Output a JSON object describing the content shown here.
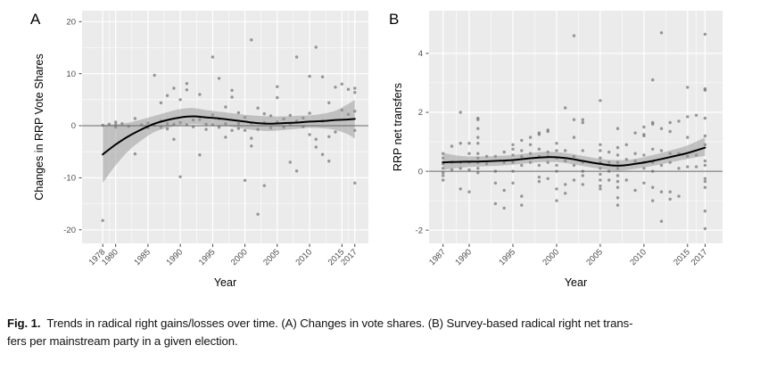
{
  "figure": {
    "caption": {
      "label": "Fig. 1.",
      "line1": "Trends in radical right gains/losses over time. (A) Changes in vote shares. (B) Survey-based radical right net trans-",
      "line2": "fers per mainstream party in a given election."
    }
  },
  "colors": {
    "panel_bg": "#ebebeb",
    "grid": "#ffffff",
    "point": "#737373",
    "smooth_line": "#000000",
    "ribbon": "#969696",
    "zero_line": "#636363",
    "tick_text": "#4d4d4d",
    "title_text": "#000000"
  },
  "chart_data": [
    {
      "type": "scatter",
      "panel_label": "A",
      "xlabel": "Year",
      "ylabel": "Changes in RRP Vote Shares",
      "xlim": [
        1974.8,
        2019.1
      ],
      "ylim": [
        -22.6,
        22.1
      ],
      "xticks": [
        1978,
        1980,
        1985,
        1990,
        1995,
        2000,
        2005,
        2010,
        2015,
        2017
      ],
      "yticks": [
        -20,
        -10,
        0,
        10,
        20
      ],
      "grid": true,
      "legend": "none",
      "zero_line": 0,
      "smooth": {
        "x": [
          1978,
          1980,
          1982,
          1984,
          1986,
          1988,
          1990,
          1992,
          1994,
          1996,
          1998,
          2000,
          2002,
          2004,
          2006,
          2008,
          2010,
          2012,
          2014,
          2016,
          2017
        ],
        "fit": [
          -5.5,
          -3.6,
          -2.0,
          -0.7,
          0.4,
          1.1,
          1.6,
          1.8,
          1.6,
          1.4,
          1.1,
          0.8,
          0.5,
          0.4,
          0.5,
          0.6,
          0.8,
          0.9,
          1.1,
          1.2,
          1.3
        ],
        "low": [
          -11.0,
          -7.6,
          -4.8,
          -2.8,
          -1.2,
          -0.4,
          0.1,
          0.3,
          0.2,
          0.1,
          -0.2,
          -0.6,
          -0.9,
          -1.0,
          -0.8,
          -0.6,
          -0.4,
          -0.5,
          -0.8,
          -1.7,
          -2.5
        ],
        "high": [
          0.2,
          0.3,
          0.6,
          1.2,
          1.9,
          2.6,
          3.2,
          3.4,
          3.0,
          2.7,
          2.4,
          2.1,
          1.9,
          1.8,
          1.8,
          1.9,
          2.0,
          2.3,
          2.9,
          4.2,
          5.0
        ]
      },
      "points": [
        [
          1978,
          -18.2
        ],
        [
          1978,
          0.1
        ],
        [
          1979,
          0.3
        ],
        [
          1980,
          0.2
        ],
        [
          1980,
          -0.3
        ],
        [
          1980,
          0.7
        ],
        [
          1981,
          0.4
        ],
        [
          1982,
          -0.1
        ],
        [
          1983,
          -5.4
        ],
        [
          1983,
          1.4
        ],
        [
          1984,
          0.2
        ],
        [
          1985,
          -0.4
        ],
        [
          1985,
          0.5
        ],
        [
          1986,
          9.7
        ],
        [
          1986,
          0.1
        ],
        [
          1987,
          4.4
        ],
        [
          1987,
          0.9
        ],
        [
          1987,
          -0.3
        ],
        [
          1988,
          5.8
        ],
        [
          1988,
          0.4
        ],
        [
          1988,
          -0.6
        ],
        [
          1989,
          7.2
        ],
        [
          1989,
          -2.6
        ],
        [
          1989,
          0.3
        ],
        [
          1990,
          5.0
        ],
        [
          1990,
          -9.8
        ],
        [
          1990,
          0.6
        ],
        [
          1991,
          8.1
        ],
        [
          1991,
          6.9
        ],
        [
          1991,
          0.2
        ],
        [
          1992,
          1.1
        ],
        [
          1992,
          -0.2
        ],
        [
          1993,
          6.0
        ],
        [
          1993,
          -5.6
        ],
        [
          1993,
          1.2
        ],
        [
          1994,
          0.3
        ],
        [
          1994,
          -0.7
        ],
        [
          1995,
          13.2
        ],
        [
          1995,
          2.1
        ],
        [
          1995,
          0.2
        ],
        [
          1996,
          9.1
        ],
        [
          1996,
          1.3
        ],
        [
          1996,
          -0.3
        ],
        [
          1997,
          3.6
        ],
        [
          1997,
          -2.2
        ],
        [
          1997,
          0.4
        ],
        [
          1998,
          6.8
        ],
        [
          1998,
          5.5
        ],
        [
          1998,
          -0.9
        ],
        [
          1999,
          2.5
        ],
        [
          1999,
          0.4
        ],
        [
          1999,
          -0.5
        ],
        [
          2000,
          -10.5
        ],
        [
          2000,
          1.6
        ],
        [
          2000,
          -0.9
        ],
        [
          2001,
          16.5
        ],
        [
          2001,
          -2.4
        ],
        [
          2001,
          -3.9
        ],
        [
          2001,
          0.5
        ],
        [
          2002,
          -17.0
        ],
        [
          2002,
          3.4
        ],
        [
          2002,
          -0.7
        ],
        [
          2003,
          -11.5
        ],
        [
          2003,
          2.3
        ],
        [
          2003,
          0.6
        ],
        [
          2004,
          1.9
        ],
        [
          2004,
          -0.4
        ],
        [
          2005,
          7.5
        ],
        [
          2005,
          5.4
        ],
        [
          2005,
          0.7
        ],
        [
          2006,
          1.3
        ],
        [
          2006,
          -0.3
        ],
        [
          2007,
          -7.0
        ],
        [
          2007,
          2.0
        ],
        [
          2007,
          0.2
        ],
        [
          2008,
          13.2
        ],
        [
          2008,
          -8.7
        ],
        [
          2008,
          0.9
        ],
        [
          2009,
          1.5
        ],
        [
          2009,
          -0.2
        ],
        [
          2010,
          9.5
        ],
        [
          2010,
          -1.7
        ],
        [
          2010,
          2.4
        ],
        [
          2011,
          15.1
        ],
        [
          2011,
          -2.6
        ],
        [
          2011,
          -4.1
        ],
        [
          2012,
          9.4
        ],
        [
          2012,
          -5.5
        ],
        [
          2012,
          0.9
        ],
        [
          2013,
          4.4
        ],
        [
          2013,
          -2.1
        ],
        [
          2013,
          -6.8
        ],
        [
          2014,
          7.4
        ],
        [
          2014,
          -1.2
        ],
        [
          2015,
          8.0
        ],
        [
          2015,
          3.0
        ],
        [
          2016,
          7.0
        ],
        [
          2016,
          2.2
        ],
        [
          2017,
          7.2
        ],
        [
          2017,
          6.4
        ],
        [
          2017,
          -11.0
        ],
        [
          2017,
          2.8
        ],
        [
          2017,
          -0.9
        ]
      ]
    },
    {
      "type": "scatter",
      "panel_label": "B",
      "xlabel": "Year",
      "ylabel": "RRP net transfers",
      "xlim": [
        1985.4,
        2019.0
      ],
      "ylim": [
        -2.45,
        5.45
      ],
      "xticks": [
        1987,
        1990,
        1995,
        2000,
        2005,
        2010,
        2015,
        2017
      ],
      "yticks": [
        -2,
        0,
        2,
        4
      ],
      "grid": true,
      "legend": "none",
      "zero_line": 0,
      "smooth": {
        "x": [
          1987,
          1989,
          1991,
          1993,
          1995,
          1997,
          1999,
          2001,
          2003,
          2005,
          2007,
          2009,
          2011,
          2013,
          2015,
          2017
        ],
        "fit": [
          0.3,
          0.32,
          0.33,
          0.35,
          0.38,
          0.44,
          0.48,
          0.45,
          0.35,
          0.25,
          0.19,
          0.25,
          0.35,
          0.48,
          0.62,
          0.8
        ],
        "low": [
          0.05,
          0.12,
          0.16,
          0.18,
          0.22,
          0.28,
          0.32,
          0.28,
          0.18,
          0.08,
          0.02,
          0.08,
          0.18,
          0.3,
          0.42,
          0.52
        ],
        "high": [
          0.62,
          0.52,
          0.5,
          0.52,
          0.55,
          0.62,
          0.66,
          0.62,
          0.52,
          0.42,
          0.38,
          0.42,
          0.55,
          0.7,
          0.88,
          1.15
        ]
      },
      "points": [
        [
          1987,
          0.6
        ],
        [
          1987,
          0.45
        ],
        [
          1987,
          0.3
        ],
        [
          1987,
          0.25
        ],
        [
          1987,
          0.1
        ],
        [
          1987,
          -0.05
        ],
        [
          1987,
          -0.15
        ],
        [
          1987,
          -0.3
        ],
        [
          1988,
          0.85
        ],
        [
          1988,
          0.3
        ],
        [
          1988,
          0.05
        ],
        [
          1989,
          2.0
        ],
        [
          1989,
          0.95
        ],
        [
          1989,
          0.3
        ],
        [
          1989,
          0.1
        ],
        [
          1989,
          -0.6
        ],
        [
          1990,
          0.95
        ],
        [
          1990,
          0.6
        ],
        [
          1990,
          0.3
        ],
        [
          1990,
          0.05
        ],
        [
          1990,
          -0.7
        ],
        [
          1991,
          1.8
        ],
        [
          1991,
          1.75
        ],
        [
          1991,
          1.45
        ],
        [
          1991,
          1.15
        ],
        [
          1991,
          0.95
        ],
        [
          1991,
          0.6
        ],
        [
          1991,
          0.45
        ],
        [
          1991,
          0.3
        ],
        [
          1991,
          0.1
        ],
        [
          1991,
          -0.05
        ],
        [
          1992,
          0.5
        ],
        [
          1992,
          0.25
        ],
        [
          1993,
          0.5
        ],
        [
          1993,
          0.0
        ],
        [
          1993,
          -0.4
        ],
        [
          1993,
          -1.1
        ],
        [
          1994,
          0.65
        ],
        [
          1994,
          0.3
        ],
        [
          1994,
          -0.65
        ],
        [
          1994,
          -1.25
        ],
        [
          1995,
          0.9
        ],
        [
          1995,
          0.75
        ],
        [
          1995,
          0.55
        ],
        [
          1995,
          0.3
        ],
        [
          1995,
          0.0
        ],
        [
          1995,
          -0.4
        ],
        [
          1996,
          1.05
        ],
        [
          1996,
          0.7
        ],
        [
          1996,
          0.5
        ],
        [
          1996,
          0.2
        ],
        [
          1996,
          -0.85
        ],
        [
          1996,
          -1.15
        ],
        [
          1997,
          1.15
        ],
        [
          1997,
          0.9
        ],
        [
          1997,
          0.6
        ],
        [
          1997,
          0.3
        ],
        [
          1998,
          1.3
        ],
        [
          1998,
          1.25
        ],
        [
          1998,
          0.75
        ],
        [
          1998,
          0.5
        ],
        [
          1998,
          0.2
        ],
        [
          1998,
          -0.2
        ],
        [
          1998,
          -0.35
        ],
        [
          1999,
          1.4
        ],
        [
          1999,
          1.35
        ],
        [
          1999,
          0.65
        ],
        [
          1999,
          0.5
        ],
        [
          1999,
          0.3
        ],
        [
          1999,
          -0.25
        ],
        [
          2000,
          0.95
        ],
        [
          2000,
          0.7
        ],
        [
          2000,
          0.45
        ],
        [
          2000,
          0.2
        ],
        [
          2000,
          0.0
        ],
        [
          2000,
          -0.6
        ],
        [
          2000,
          -1.0
        ],
        [
          2001,
          2.15
        ],
        [
          2001,
          0.7
        ],
        [
          2001,
          0.35
        ],
        [
          2001,
          -0.45
        ],
        [
          2001,
          -0.75
        ],
        [
          2002,
          4.6
        ],
        [
          2002,
          1.75
        ],
        [
          2002,
          1.15
        ],
        [
          2002,
          0.5
        ],
        [
          2002,
          0.2
        ],
        [
          2002,
          -0.3
        ],
        [
          2003,
          1.75
        ],
        [
          2003,
          1.65
        ],
        [
          2003,
          0.7
        ],
        [
          2003,
          0.3
        ],
        [
          2003,
          0.0
        ],
        [
          2003,
          -0.15
        ],
        [
          2003,
          -0.45
        ],
        [
          2005,
          2.4
        ],
        [
          2005,
          0.9
        ],
        [
          2005,
          0.7
        ],
        [
          2005,
          0.45
        ],
        [
          2005,
          0.3
        ],
        [
          2005,
          0.1
        ],
        [
          2005,
          -0.1
        ],
        [
          2005,
          -0.3
        ],
        [
          2005,
          -0.5
        ],
        [
          2005,
          -0.6
        ],
        [
          2006,
          0.65
        ],
        [
          2006,
          0.3
        ],
        [
          2006,
          0.0
        ],
        [
          2006,
          -0.3
        ],
        [
          2007,
          1.45
        ],
        [
          2007,
          0.8
        ],
        [
          2007,
          0.55
        ],
        [
          2007,
          0.3
        ],
        [
          2007,
          0.1
        ],
        [
          2007,
          -0.15
        ],
        [
          2007,
          -0.35
        ],
        [
          2007,
          -0.55
        ],
        [
          2007,
          -0.9
        ],
        [
          2007,
          -1.15
        ],
        [
          2008,
          0.9
        ],
        [
          2008,
          0.4
        ],
        [
          2008,
          -0.3
        ],
        [
          2009,
          1.3
        ],
        [
          2009,
          0.6
        ],
        [
          2009,
          0.35
        ],
        [
          2009,
          -0.65
        ],
        [
          2010,
          1.5
        ],
        [
          2010,
          1.25
        ],
        [
          2010,
          1.2
        ],
        [
          2010,
          0.55
        ],
        [
          2010,
          0.3
        ],
        [
          2010,
          0.1
        ],
        [
          2010,
          -0.4
        ],
        [
          2011,
          3.1
        ],
        [
          2011,
          1.65
        ],
        [
          2011,
          1.6
        ],
        [
          2011,
          0.75
        ],
        [
          2011,
          0.3
        ],
        [
          2011,
          0.0
        ],
        [
          2011,
          -0.55
        ],
        [
          2011,
          -1.0
        ],
        [
          2012,
          4.7
        ],
        [
          2012,
          1.45
        ],
        [
          2012,
          0.7
        ],
        [
          2012,
          0.2
        ],
        [
          2012,
          -0.7
        ],
        [
          2012,
          -1.7
        ],
        [
          2013,
          1.65
        ],
        [
          2013,
          1.35
        ],
        [
          2013,
          0.6
        ],
        [
          2013,
          0.3
        ],
        [
          2013,
          -0.7
        ],
        [
          2013,
          -0.95
        ],
        [
          2014,
          1.7
        ],
        [
          2014,
          0.6
        ],
        [
          2014,
          0.1
        ],
        [
          2014,
          -0.85
        ],
        [
          2015,
          2.85
        ],
        [
          2015,
          1.85
        ],
        [
          2015,
          1.15
        ],
        [
          2015,
          0.5
        ],
        [
          2015,
          0.15
        ],
        [
          2016,
          1.9
        ],
        [
          2016,
          0.55
        ],
        [
          2016,
          0.15
        ],
        [
          2017,
          4.65
        ],
        [
          2017,
          2.8
        ],
        [
          2017,
          2.75
        ],
        [
          2017,
          1.8
        ],
        [
          2017,
          1.2
        ],
        [
          2017,
          0.9
        ],
        [
          2017,
          0.35
        ],
        [
          2017,
          0.2
        ],
        [
          2017,
          -0.25
        ],
        [
          2017,
          -0.35
        ],
        [
          2017,
          -0.55
        ],
        [
          2017,
          -1.35
        ],
        [
          2017,
          -1.95
        ]
      ]
    }
  ]
}
